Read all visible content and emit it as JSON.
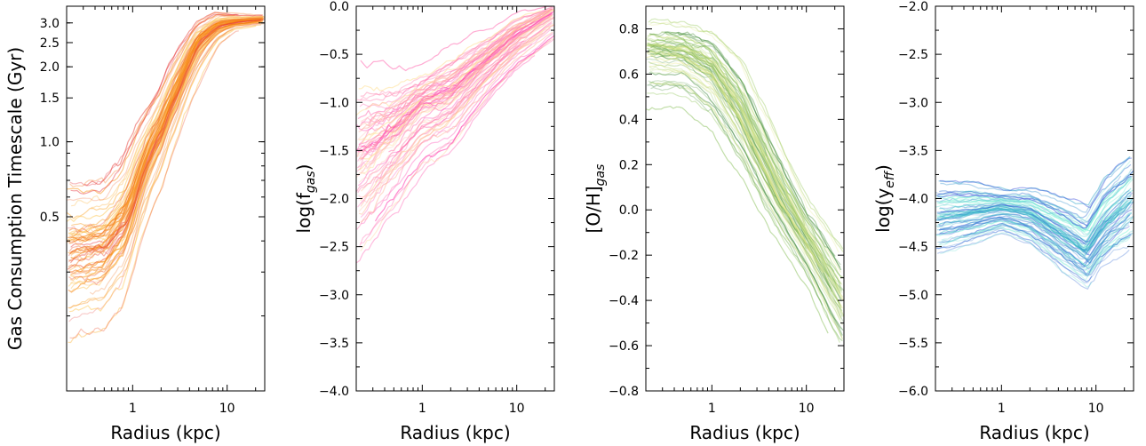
{
  "chart_data": [
    {
      "type": "line",
      "xlabel": "Radius (kpc)",
      "ylabel": "Gas Consumption Timescale (Gyr)",
      "xscale": "log",
      "yscale": "log",
      "xlim": [
        0.2,
        25
      ],
      "ylim": [
        0.1,
        3.5
      ],
      "xticks": [
        1,
        10
      ],
      "xtick_labels": [
        "1",
        "10"
      ],
      "yticks": [
        0.5,
        1.0,
        1.5,
        2.0,
        2.5,
        3.0
      ],
      "ytick_labels": [
        "0.5",
        "1.0",
        "1.5",
        "2.0",
        "2.5",
        "3.0"
      ],
      "grid": false,
      "legend": "none",
      "color_range": [
        "#ffd166",
        "#f77f00",
        "#e63946"
      ],
      "n_lines": 70,
      "envelope": {
        "x": [
          0.2,
          0.5,
          0.8,
          1.0,
          2.0,
          3.0,
          5.0,
          8.0,
          12.0,
          25.0
        ],
        "median": [
          0.33,
          0.36,
          0.45,
          0.55,
          1.1,
          1.6,
          2.5,
          2.9,
          3.0,
          3.1
        ],
        "low": [
          0.18,
          0.2,
          0.25,
          0.33,
          0.7,
          1.1,
          1.8,
          2.5,
          2.8,
          2.9
        ],
        "high": [
          0.6,
          0.6,
          0.75,
          0.9,
          1.5,
          2.1,
          2.9,
          3.2,
          3.2,
          3.2
        ]
      }
    },
    {
      "type": "line",
      "xlabel": "Radius (kpc)",
      "ylabel": "log(f",
      "ylabel_sub": "gas",
      "ylabel_suffix": ")",
      "xscale": "log",
      "yscale": "linear",
      "xlim": [
        0.2,
        25
      ],
      "ylim": [
        -4.0,
        0.0
      ],
      "xticks": [
        1,
        10
      ],
      "xtick_labels": [
        "1",
        "10"
      ],
      "yticks": [
        -4.0,
        -3.5,
        -3.0,
        -2.5,
        -2.0,
        -1.5,
        -1.0,
        -0.5,
        0.0
      ],
      "ytick_labels": [
        "−4.0",
        "−3.5",
        "−3.0",
        "−2.5",
        "−2.0",
        "−1.5",
        "−1.0",
        "−0.5",
        "0.0"
      ],
      "grid": false,
      "legend": "none",
      "color_range": [
        "#ffe58a",
        "#ff8fb1",
        "#ff1fa8"
      ],
      "n_lines": 70,
      "envelope": {
        "x": [
          0.2,
          0.5,
          1.0,
          2.0,
          5.0,
          10.0,
          25.0
        ],
        "median": [
          -1.6,
          -1.3,
          -1.0,
          -0.9,
          -0.55,
          -0.3,
          -0.05
        ],
        "low": [
          -2.5,
          -2.0,
          -1.6,
          -1.4,
          -0.9,
          -0.6,
          -0.3
        ],
        "high": [
          -0.8,
          -0.8,
          -0.7,
          -0.5,
          -0.3,
          -0.1,
          0.0
        ]
      }
    },
    {
      "type": "line",
      "xlabel": "Radius (kpc)",
      "ylabel": "[O/H]",
      "ylabel_sub": "gas",
      "ylabel_suffix": "",
      "xscale": "log",
      "yscale": "linear",
      "xlim": [
        0.2,
        25
      ],
      "ylim": [
        -0.8,
        0.9
      ],
      "xticks": [
        1,
        10
      ],
      "xtick_labels": [
        "1",
        "10"
      ],
      "yticks": [
        -0.8,
        -0.6,
        -0.4,
        -0.2,
        0.0,
        0.2,
        0.4,
        0.6,
        0.8
      ],
      "ytick_labels": [
        "−0.8",
        "−0.6",
        "−0.4",
        "−0.2",
        "0.0",
        "0.2",
        "0.4",
        "0.6",
        "0.8"
      ],
      "grid": false,
      "legend": "none",
      "color_range": [
        "#f2ef9a",
        "#9ccc65",
        "#2e7d32"
      ],
      "n_lines": 70,
      "envelope": {
        "x": [
          0.2,
          0.5,
          1.0,
          2.0,
          5.0,
          10.0,
          25.0
        ],
        "median": [
          0.7,
          0.68,
          0.6,
          0.4,
          0.05,
          -0.15,
          -0.45
        ],
        "low": [
          0.5,
          0.5,
          0.4,
          0.2,
          -0.1,
          -0.3,
          -0.65
        ],
        "high": [
          0.8,
          0.8,
          0.75,
          0.6,
          0.25,
          0.0,
          -0.25
        ]
      }
    },
    {
      "type": "line",
      "xlabel": "Radius (kpc)",
      "ylabel": "log(y",
      "ylabel_sub": "eff",
      "ylabel_suffix": ")",
      "xscale": "log",
      "yscale": "linear",
      "xlim": [
        0.2,
        25
      ],
      "ylim": [
        -6.0,
        -2.0
      ],
      "xticks": [
        1,
        10
      ],
      "xtick_labels": [
        "1",
        "10"
      ],
      "yticks": [
        -6.0,
        -5.5,
        -5.0,
        -4.5,
        -4.0,
        -3.5,
        -3.0,
        -2.5,
        -2.0
      ],
      "ytick_labels": [
        "−6.0",
        "−5.5",
        "−5.0",
        "−4.5",
        "−4.0",
        "−3.5",
        "−3.0",
        "−2.5",
        "−2.0"
      ],
      "grid": false,
      "legend": "none",
      "color_range": [
        "#7fffd4",
        "#2aa8c8",
        "#2a3fd8"
      ],
      "n_lines": 70,
      "envelope": {
        "x": [
          0.2,
          0.5,
          1.0,
          2.0,
          5.0,
          8.0,
          12.0,
          25.0
        ],
        "median": [
          -4.2,
          -4.15,
          -4.1,
          -4.15,
          -4.4,
          -4.55,
          -4.3,
          -4.0
        ],
        "low": [
          -4.5,
          -4.4,
          -4.3,
          -4.4,
          -4.7,
          -4.85,
          -4.6,
          -4.4
        ],
        "high": [
          -3.9,
          -3.9,
          -3.95,
          -3.95,
          -4.1,
          -4.2,
          -3.9,
          -3.6
        ]
      }
    }
  ]
}
